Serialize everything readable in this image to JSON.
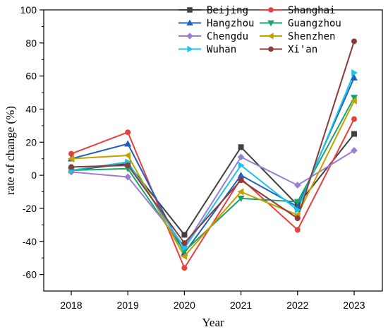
{
  "chart_data": {
    "type": "line",
    "categories": [
      "2018",
      "2019",
      "2020",
      "2021",
      "2022",
      "2023"
    ],
    "xlabel": "Year",
    "ylabel": "rate of change (%)",
    "ylim": [
      -70,
      100
    ],
    "yticks": [
      -60,
      -40,
      -20,
      0,
      20,
      40,
      60,
      80,
      100
    ],
    "grid": false,
    "legend_position": "top-right",
    "series": [
      {
        "name": "Beijing",
        "color": "#404040",
        "marker": "square",
        "values": [
          3,
          7,
          -36,
          17,
          -18,
          25
        ]
      },
      {
        "name": "Shanghai",
        "color": "#e8403c",
        "marker": "circle",
        "values": [
          13,
          26,
          -56,
          -2,
          -33,
          34
        ]
      },
      {
        "name": "Hangzhou",
        "color": "#1f5fbf",
        "marker": "triangle-up",
        "values": [
          10,
          19,
          -47,
          0,
          -19,
          59
        ]
      },
      {
        "name": "Guangzhou",
        "color": "#17a46b",
        "marker": "triangle-down",
        "values": [
          3,
          4,
          -46,
          -14,
          -16,
          47
        ]
      },
      {
        "name": "Chengdu",
        "color": "#9a7fd1",
        "marker": "diamond",
        "values": [
          2,
          -1,
          -43,
          11,
          -6,
          15
        ]
      },
      {
        "name": "Shenzhen",
        "color": "#c4a000",
        "marker": "triangle-left",
        "values": [
          10,
          12,
          -49,
          -10,
          -24,
          45
        ]
      },
      {
        "name": "Wuhan",
        "color": "#1cc4e8",
        "marker": "triangle-right",
        "values": [
          3,
          8,
          -44,
          6,
          -21,
          62
        ]
      },
      {
        "name": "Xi'an",
        "color": "#8b3a3a",
        "marker": "circle",
        "values": [
          5,
          6,
          -41,
          -3,
          -26,
          81
        ]
      }
    ]
  }
}
